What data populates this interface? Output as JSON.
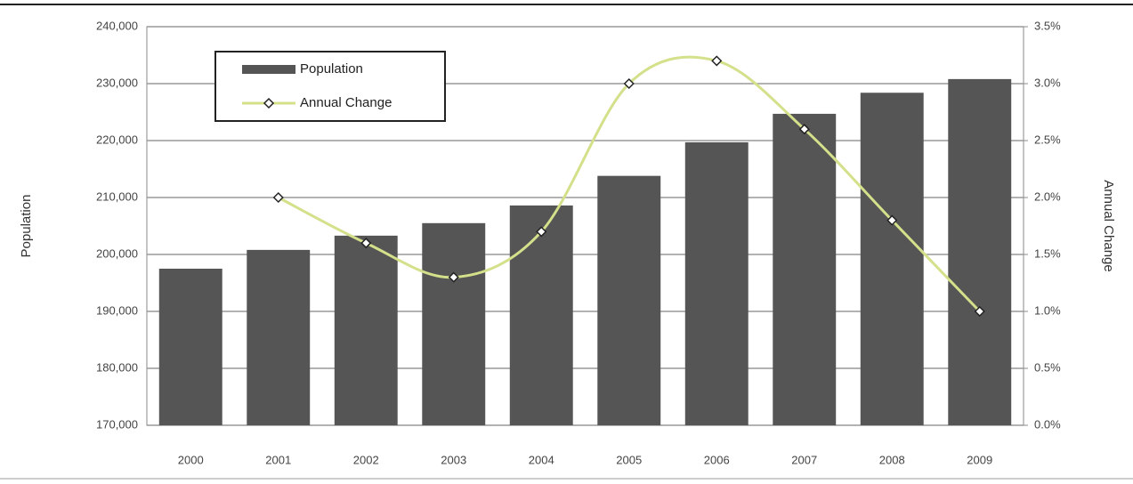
{
  "chart_data": {
    "type": "bar-line",
    "y_label": "Population",
    "y2_label": "Annual Change",
    "categories": [
      "2000",
      "2001",
      "2002",
      "2003",
      "2004",
      "2005",
      "2006",
      "2007",
      "2008",
      "2009"
    ],
    "series": [
      {
        "name": "Population",
        "type": "bar",
        "color": "#555555",
        "values": [
          197500,
          200800,
          203300,
          205500,
          208600,
          213800,
          219700,
          224700,
          228400,
          230800
        ]
      },
      {
        "name": "Annual Change",
        "type": "line",
        "axis": "y2",
        "color": "#d4e08a",
        "values": [
          null,
          2.0,
          1.6,
          1.3,
          1.7,
          3.0,
          3.2,
          2.6,
          1.8,
          1.0
        ]
      }
    ],
    "ylim": [
      170000,
      240000
    ],
    "yticks": [
      {
        "value": 170000,
        "label": "170,000"
      },
      {
        "value": 180000,
        "label": "180,000"
      },
      {
        "value": 190000,
        "label": "190,000"
      },
      {
        "value": 200000,
        "label": "200,000"
      },
      {
        "value": 210000,
        "label": "210,000"
      },
      {
        "value": 220000,
        "label": "220,000"
      },
      {
        "value": 230000,
        "label": "230,000"
      },
      {
        "value": 240000,
        "label": "240,000"
      }
    ],
    "y2lim": [
      0,
      3.5
    ],
    "y2ticks": [
      {
        "value": 0,
        "label": "0.0%"
      },
      {
        "value": 0.5,
        "label": "0.5%"
      },
      {
        "value": 1,
        "label": "1.0%"
      },
      {
        "value": 1.5,
        "label": "1.5%"
      },
      {
        "value": 2,
        "label": "2.0%"
      },
      {
        "value": 2.5,
        "label": "2.5%"
      },
      {
        "value": 3,
        "label": "3.0%"
      },
      {
        "value": 3.5,
        "label": "3.5%"
      }
    ],
    "grid": true,
    "legend": "upper left"
  }
}
